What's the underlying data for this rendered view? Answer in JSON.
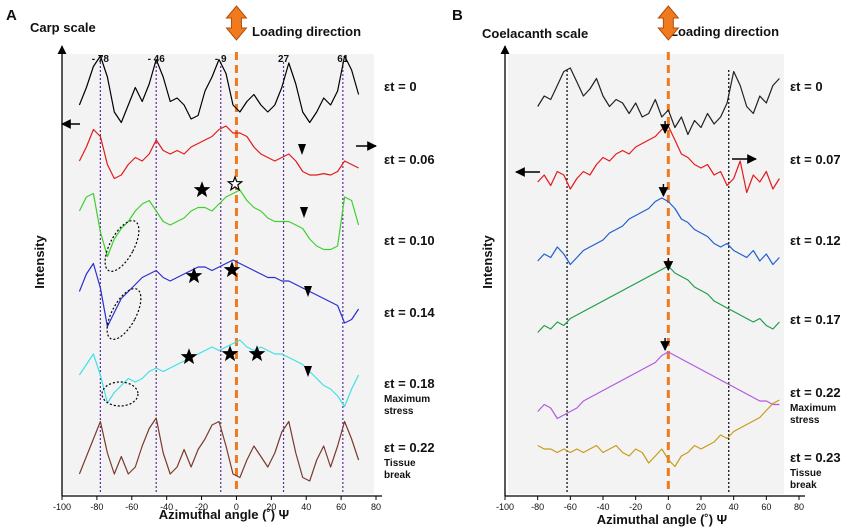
{
  "chart_data": [
    {
      "panel": "A",
      "title": "Carp scale",
      "type": "line",
      "xlabel": "Azimuthal angle (˚) Ψ",
      "ylabel": "Intensity",
      "xlim": [
        -100,
        80
      ],
      "xticks": [
        "-100",
        "-80",
        "-60",
        "-40",
        "-20",
        "0",
        "20",
        "40",
        "60",
        "80"
      ],
      "loading_label": "Loading direction",
      "peak_labels": [
        {
          "text": "- 78",
          "x": -78
        },
        {
          "text": "- 46",
          "x": -46
        },
        {
          "text": "- 9",
          "x": -9
        },
        {
          "text": "27",
          "x": 27
        },
        {
          "text": "61",
          "x": 61
        }
      ],
      "vlines": [
        -78,
        -46,
        -9,
        27,
        61
      ],
      "series": [
        {
          "name": "εt = 0",
          "label": "εt = 0",
          "sub": "",
          "color": "#000000",
          "x": [
            -90,
            -86,
            -82,
            -78,
            -74,
            -70,
            -66,
            -62,
            -58,
            -54,
            -50,
            -46,
            -42,
            -38,
            -34,
            -30,
            -26,
            -22,
            -18,
            -14,
            -10,
            -6,
            -2,
            2,
            6,
            10,
            14,
            18,
            22,
            26,
            30,
            34,
            38,
            42,
            46,
            50,
            54,
            58,
            62,
            66,
            70
          ],
          "y": [
            0.3,
            0.55,
            0.85,
            1.0,
            0.7,
            0.2,
            0.05,
            0.3,
            0.55,
            0.35,
            0.6,
            0.95,
            0.7,
            0.35,
            0.4,
            0.3,
            0.1,
            0.15,
            0.5,
            0.7,
            0.95,
            0.75,
            0.3,
            0.2,
            0.35,
            0.45,
            0.3,
            0.2,
            0.3,
            0.55,
            0.9,
            0.6,
            0.2,
            0.05,
            0.2,
            0.4,
            0.3,
            0.5,
            1.0,
            0.8,
            0.45
          ]
        },
        {
          "name": "εt = 0.06",
          "label": "εt = 0.06",
          "sub": "",
          "color": "#e31a1c",
          "x": [
            -90,
            -86,
            -82,
            -78,
            -74,
            -70,
            -66,
            -62,
            -58,
            -54,
            -50,
            -46,
            -42,
            -38,
            -34,
            -30,
            -26,
            -22,
            -18,
            -14,
            -10,
            -6,
            -2,
            2,
            6,
            10,
            14,
            18,
            22,
            26,
            30,
            34,
            38,
            42,
            46,
            50,
            54,
            58,
            62,
            66,
            70
          ],
          "y": [
            0.5,
            0.7,
            0.95,
            0.85,
            0.45,
            0.25,
            0.3,
            0.45,
            0.55,
            0.5,
            0.6,
            0.8,
            0.65,
            0.6,
            0.65,
            0.6,
            0.7,
            0.75,
            0.8,
            0.85,
            0.95,
            1.0,
            0.9,
            0.9,
            0.85,
            0.7,
            0.6,
            0.55,
            0.5,
            0.55,
            0.6,
            0.5,
            0.35,
            0.3,
            0.3,
            0.32,
            0.3,
            0.35,
            0.5,
            0.45,
            0.4
          ]
        },
        {
          "name": "εt = 0.10",
          "label": "εt = 0.10",
          "sub": "",
          "color": "#3cd12e",
          "x": [
            -90,
            -86,
            -82,
            -78,
            -74,
            -70,
            -66,
            -62,
            -58,
            -54,
            -50,
            -46,
            -42,
            -38,
            -34,
            -30,
            -26,
            -22,
            -18,
            -14,
            -10,
            -6,
            -2,
            2,
            6,
            10,
            14,
            18,
            22,
            26,
            30,
            34,
            38,
            42,
            46,
            50,
            54,
            58,
            62,
            66,
            70
          ],
          "y": [
            0.7,
            0.9,
            0.95,
            0.4,
            0.05,
            0.3,
            0.45,
            0.55,
            0.7,
            0.8,
            0.85,
            0.7,
            0.55,
            0.5,
            0.55,
            0.6,
            0.7,
            0.75,
            0.75,
            0.7,
            0.8,
            0.9,
            0.95,
            1.0,
            0.85,
            0.75,
            0.7,
            0.6,
            0.55,
            0.55,
            0.55,
            0.5,
            0.45,
            0.3,
            0.2,
            0.15,
            0.15,
            0.2,
            0.9,
            0.85,
            0.5
          ]
        },
        {
          "name": "εt = 0.14",
          "label": "εt = 0.14",
          "sub": "",
          "color": "#2b2fd0",
          "x": [
            -90,
            -86,
            -82,
            -78,
            -74,
            -70,
            -66,
            -62,
            -58,
            -54,
            -50,
            -46,
            -42,
            -38,
            -34,
            -30,
            -26,
            -22,
            -18,
            -14,
            -10,
            -6,
            -2,
            2,
            6,
            10,
            14,
            18,
            22,
            26,
            30,
            34,
            38,
            42,
            46,
            50,
            54,
            58,
            62,
            66,
            70
          ],
          "y": [
            0.55,
            0.8,
            0.95,
            0.6,
            0.05,
            0.25,
            0.45,
            0.55,
            0.65,
            0.75,
            0.8,
            0.85,
            0.75,
            0.7,
            0.75,
            0.8,
            0.85,
            0.9,
            0.9,
            0.85,
            0.9,
            0.95,
            1.0,
            0.95,
            0.9,
            0.85,
            0.8,
            0.75,
            0.75,
            0.7,
            0.7,
            0.65,
            0.6,
            0.55,
            0.5,
            0.45,
            0.4,
            0.35,
            0.1,
            0.15,
            0.3
          ]
        },
        {
          "name": "εt = 0.18",
          "label": "εt = 0.18",
          "sub": "Maximum stress",
          "color": "#3fe0e8",
          "x": [
            -90,
            -86,
            -82,
            -78,
            -74,
            -70,
            -66,
            -62,
            -58,
            -54,
            -50,
            -46,
            -42,
            -38,
            -34,
            -30,
            -26,
            -22,
            -18,
            -14,
            -10,
            -6,
            -2,
            2,
            6,
            10,
            14,
            18,
            22,
            26,
            30,
            34,
            38,
            42,
            46,
            50,
            54,
            58,
            62,
            66,
            70
          ],
          "y": [
            0.5,
            0.65,
            0.8,
            0.5,
            0.1,
            0.25,
            0.35,
            0.45,
            0.4,
            0.45,
            0.55,
            0.6,
            0.55,
            0.6,
            0.65,
            0.7,
            0.75,
            0.8,
            0.85,
            0.9,
            0.85,
            0.9,
            0.95,
            1.0,
            0.9,
            0.85,
            0.9,
            0.85,
            0.8,
            0.8,
            0.75,
            0.7,
            0.65,
            0.55,
            0.45,
            0.35,
            0.3,
            0.2,
            0.05,
            0.3,
            0.5
          ]
        },
        {
          "name": "εt = 0.22",
          "label": "εt = 0.22",
          "sub": "Tissue break",
          "color": "#7a3b2e",
          "x": [
            -90,
            -86,
            -82,
            -78,
            -74,
            -70,
            -66,
            -62,
            -58,
            -54,
            -50,
            -46,
            -42,
            -38,
            -34,
            -30,
            -26,
            -22,
            -18,
            -14,
            -10,
            -6,
            -2,
            2,
            6,
            10,
            14,
            18,
            22,
            26,
            30,
            34,
            38,
            42,
            46,
            50,
            54,
            58,
            62,
            66,
            70
          ],
          "y": [
            0.2,
            0.45,
            0.7,
            0.95,
            0.5,
            0.2,
            0.45,
            0.2,
            0.3,
            0.6,
            0.85,
            1.0,
            0.5,
            0.2,
            0.3,
            0.55,
            0.3,
            0.55,
            0.7,
            0.9,
            0.95,
            0.6,
            0.2,
            0.15,
            0.4,
            0.6,
            0.45,
            0.3,
            0.5,
            0.8,
            0.95,
            0.5,
            0.15,
            0.1,
            0.4,
            0.6,
            0.3,
            0.6,
            0.95,
            0.7,
            0.4
          ]
        }
      ]
    },
    {
      "panel": "B",
      "title": "Coelacanth scale",
      "type": "line",
      "xlabel": "Azimuthal angle (˚) Ψ",
      "ylabel": "Intensity",
      "xlim": [
        -100,
        80
      ],
      "xticks": [
        "-100",
        "-80",
        "-60",
        "-40",
        "-20",
        "0",
        "20",
        "40",
        "60",
        "80"
      ],
      "loading_label": "Loading direction",
      "vlines": [
        -62,
        37
      ],
      "series": [
        {
          "name": "εt = 0",
          "label": "εt = 0",
          "sub": "",
          "color": "#222222",
          "x": [
            -80,
            -76,
            -72,
            -68,
            -64,
            -60,
            -56,
            -52,
            -48,
            -44,
            -40,
            -36,
            -32,
            -28,
            -24,
            -20,
            -16,
            -12,
            -8,
            -4,
            0,
            4,
            8,
            12,
            16,
            20,
            24,
            28,
            32,
            36,
            40,
            44,
            48,
            52,
            56,
            60,
            64,
            68
          ],
          "y": [
            0.45,
            0.6,
            0.55,
            0.75,
            0.95,
            1.0,
            0.8,
            0.6,
            0.7,
            0.85,
            0.6,
            0.45,
            0.55,
            0.5,
            0.35,
            0.5,
            0.3,
            0.35,
            0.55,
            0.3,
            0.4,
            0.15,
            0.3,
            0.05,
            0.25,
            0.15,
            0.35,
            0.2,
            0.3,
            0.5,
            0.95,
            0.75,
            0.45,
            0.35,
            0.6,
            0.5,
            0.75,
            0.85
          ]
        },
        {
          "name": "εt = 0.07",
          "label": "εt = 0.07",
          "sub": "",
          "color": "#e31a1c",
          "x": [
            -80,
            -76,
            -72,
            -68,
            -64,
            -60,
            -56,
            -52,
            -48,
            -44,
            -40,
            -36,
            -32,
            -28,
            -24,
            -20,
            -16,
            -12,
            -8,
            -4,
            0,
            4,
            8,
            12,
            16,
            20,
            24,
            28,
            32,
            36,
            40,
            44,
            48,
            52,
            56,
            60,
            64,
            68
          ],
          "y": [
            0.2,
            0.3,
            0.15,
            0.35,
            0.3,
            0.1,
            0.25,
            0.35,
            0.3,
            0.45,
            0.55,
            0.5,
            0.6,
            0.65,
            0.6,
            0.7,
            0.75,
            0.8,
            0.85,
            0.95,
            1.0,
            0.8,
            0.6,
            0.55,
            0.45,
            0.4,
            0.45,
            0.3,
            0.35,
            0.15,
            0.25,
            0.5,
            0.05,
            0.3,
            0.2,
            0.35,
            0.1,
            0.25
          ]
        },
        {
          "name": "εt = 0.12",
          "label": "εt = 0.12",
          "sub": "",
          "color": "#1f5fd1",
          "x": [
            -80,
            -76,
            -72,
            -68,
            -64,
            -60,
            -56,
            -52,
            -48,
            -44,
            -40,
            -36,
            -32,
            -28,
            -24,
            -20,
            -16,
            -12,
            -8,
            -4,
            0,
            4,
            8,
            12,
            16,
            20,
            24,
            28,
            32,
            36,
            40,
            44,
            48,
            52,
            56,
            60,
            64,
            68
          ],
          "y": [
            0.1,
            0.2,
            0.15,
            0.3,
            0.2,
            0.05,
            0.15,
            0.25,
            0.3,
            0.35,
            0.4,
            0.5,
            0.55,
            0.6,
            0.7,
            0.75,
            0.8,
            0.85,
            0.95,
            1.0,
            0.95,
            0.85,
            0.7,
            0.65,
            0.55,
            0.5,
            0.45,
            0.35,
            0.3,
            0.35,
            0.25,
            0.2,
            0.15,
            0.25,
            0.1,
            0.2,
            0.05,
            0.15
          ]
        },
        {
          "name": "εt = 0.17",
          "label": "εt = 0.17",
          "sub": "",
          "color": "#1e9e4a",
          "x": [
            -80,
            -76,
            -72,
            -68,
            -64,
            -60,
            -56,
            -52,
            -48,
            -44,
            -40,
            -36,
            -32,
            -28,
            -24,
            -20,
            -16,
            -12,
            -8,
            -4,
            0,
            4,
            8,
            12,
            16,
            20,
            24,
            28,
            32,
            36,
            40,
            44,
            48,
            52,
            56,
            60,
            64,
            68
          ],
          "y": [
            0.05,
            0.15,
            0.1,
            0.2,
            0.15,
            0.25,
            0.3,
            0.35,
            0.4,
            0.45,
            0.5,
            0.55,
            0.6,
            0.65,
            0.7,
            0.75,
            0.8,
            0.85,
            0.9,
            0.95,
            1.0,
            0.9,
            0.85,
            0.8,
            0.7,
            0.65,
            0.6,
            0.5,
            0.45,
            0.4,
            0.35,
            0.3,
            0.25,
            0.2,
            0.25,
            0.15,
            0.1,
            0.2
          ]
        },
        {
          "name": "εt = 0.22",
          "label": "εt = 0.22",
          "sub": "Maximum stress",
          "color": "#b15be0",
          "x": [
            -80,
            -76,
            -72,
            -68,
            -64,
            -60,
            -56,
            -52,
            -48,
            -44,
            -40,
            -36,
            -32,
            -28,
            -24,
            -20,
            -16,
            -12,
            -8,
            -4,
            0,
            4,
            8,
            12,
            16,
            20,
            24,
            28,
            32,
            36,
            40,
            44,
            48,
            52,
            56,
            60,
            64,
            68
          ],
          "y": [
            0.15,
            0.25,
            0.2,
            0.05,
            0.1,
            0.15,
            0.2,
            0.3,
            0.35,
            0.4,
            0.45,
            0.5,
            0.55,
            0.6,
            0.65,
            0.7,
            0.75,
            0.8,
            0.85,
            0.95,
            1.0,
            0.95,
            0.9,
            0.85,
            0.8,
            0.75,
            0.7,
            0.65,
            0.6,
            0.55,
            0.5,
            0.45,
            0.4,
            0.35,
            0.3,
            0.3,
            0.25,
            0.25
          ]
        },
        {
          "name": "εt = 0.23",
          "label": "εt = 0.23",
          "sub": "Tissue break",
          "color": "#c99a1a",
          "x": [
            -80,
            -76,
            -72,
            -68,
            -64,
            -60,
            -56,
            -52,
            -48,
            -44,
            -40,
            -36,
            -32,
            -28,
            -24,
            -20,
            -16,
            -12,
            -8,
            -4,
            0,
            4,
            8,
            12,
            16,
            20,
            24,
            28,
            32,
            36,
            40,
            44,
            48,
            52,
            56,
            60,
            64,
            68
          ],
          "y": [
            0.35,
            0.3,
            0.3,
            0.25,
            0.3,
            0.25,
            0.3,
            0.25,
            0.3,
            0.35,
            0.25,
            0.3,
            0.35,
            0.25,
            0.2,
            0.3,
            0.25,
            0.1,
            0.2,
            0.3,
            0.15,
            0.05,
            0.2,
            0.25,
            0.35,
            0.3,
            0.35,
            0.4,
            0.5,
            0.45,
            0.55,
            0.6,
            0.65,
            0.7,
            0.75,
            0.85,
            0.95,
            1.0
          ]
        }
      ]
    }
  ],
  "panel_letters": {
    "a": "A",
    "b": "B"
  }
}
